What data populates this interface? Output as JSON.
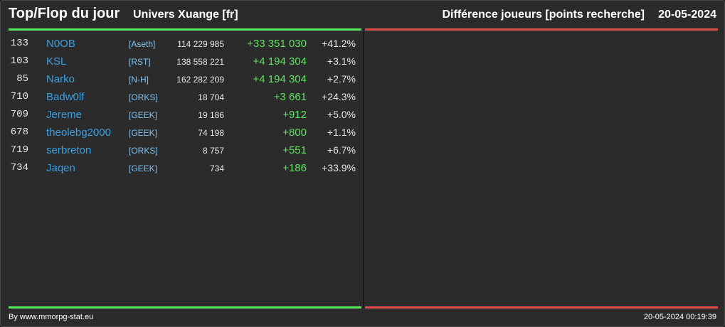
{
  "header": {
    "title": "Top/Flop du jour",
    "universe": "Univers Xuange [fr]",
    "subtitle": "Différence joueurs [points recherche]",
    "date": "20-05-2024"
  },
  "colors": {
    "top": "#59e85e",
    "flop": "#e0504a",
    "player": "#3a9fe2",
    "alliance": "#7fc2f2"
  },
  "top_rows": [
    {
      "rank": "133",
      "name": "N0OB",
      "alliance": "[Aseth]",
      "points": "114 229 985",
      "diff": "+33 351 030",
      "pct": "+41.2%"
    },
    {
      "rank": "103",
      "name": "KSL",
      "alliance": "[RST]",
      "points": "138 558 221",
      "diff": "+4 194 304",
      "pct": "+3.1%"
    },
    {
      "rank": "85",
      "name": "Narko",
      "alliance": "[N-H]",
      "points": "162 282 209",
      "diff": "+4 194 304",
      "pct": "+2.7%"
    },
    {
      "rank": "710",
      "name": "Badw0lf",
      "alliance": "[ORKS]",
      "points": "18 704",
      "diff": "+3 661",
      "pct": "+24.3%"
    },
    {
      "rank": "709",
      "name": "Jereme",
      "alliance": "[GEEK]",
      "points": "19 186",
      "diff": "+912",
      "pct": "+5.0%"
    },
    {
      "rank": "678",
      "name": "theolebg2000",
      "alliance": "[GEEK]",
      "points": "74 198",
      "diff": "+800",
      "pct": "+1.1%"
    },
    {
      "rank": "719",
      "name": "serbreton",
      "alliance": "[ORKS]",
      "points": "8 757",
      "diff": "+551",
      "pct": "+6.7%"
    },
    {
      "rank": "734",
      "name": "Jaqen",
      "alliance": "[GEEK]",
      "points": "734",
      "diff": "+186",
      "pct": "+33.9%"
    }
  ],
  "flop_rows": [],
  "footer": {
    "credit": "By www.mmorpg-stat.eu",
    "timestamp": "20-05-2024 00:19:39"
  }
}
